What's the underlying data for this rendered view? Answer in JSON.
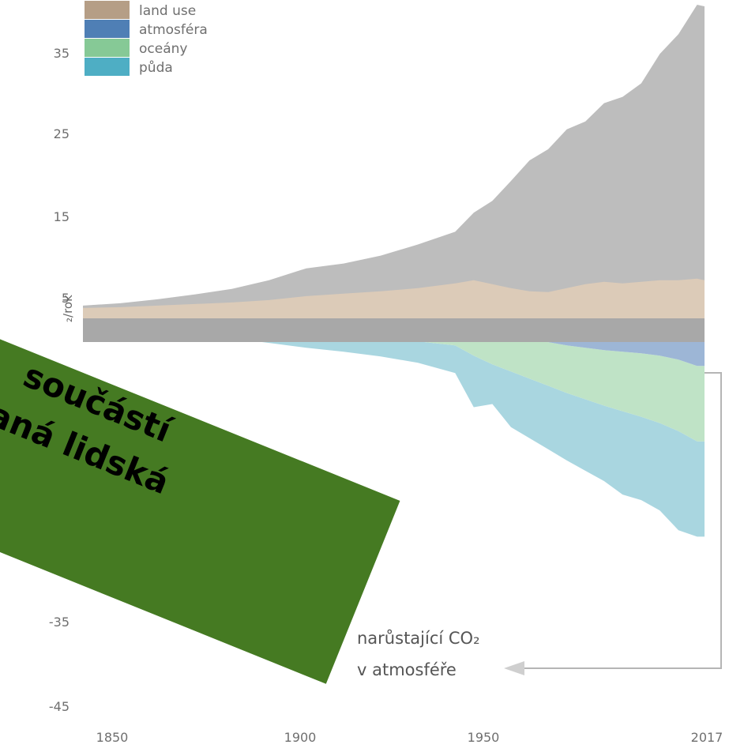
{
  "chart_data": {
    "type": "area",
    "title": "",
    "ylabel_visible": "₂/rok",
    "x_ticks": [
      "1850",
      "1900",
      "1950",
      "2017"
    ],
    "y_ticks": [
      "35",
      "25",
      "15",
      "5",
      "-35",
      "-45"
    ],
    "xlim": [
      1840,
      2020
    ],
    "ylim": [
      -45,
      40
    ],
    "legend": [
      {
        "label": "land use",
        "color": "#b59e86"
      },
      {
        "label": "atmosféra",
        "color": "#4f7fb5"
      },
      {
        "label": "oceány",
        "color": "#86c996"
      },
      {
        "label": "půda",
        "color": "#4eaec4"
      }
    ],
    "fossil_color": "#bdbdbd",
    "zero_band_color": "#a8a8a8",
    "years": [
      1850,
      1860,
      1870,
      1880,
      1890,
      1900,
      1910,
      1920,
      1930,
      1940,
      1950,
      1955,
      1960,
      1965,
      1970,
      1975,
      1980,
      1985,
      1990,
      1995,
      2000,
      2005,
      2010,
      2015,
      2017
    ],
    "series": [
      {
        "key": "land_use",
        "name": "land use",
        "values": [
          1.5,
          1.6,
          1.8,
          2.0,
          2.2,
          2.5,
          3.0,
          3.3,
          3.6,
          4.0,
          4.6,
          5.0,
          4.5,
          4.0,
          3.6,
          3.5,
          4.0,
          4.5,
          4.8,
          4.6,
          4.8,
          5.0,
          5.0,
          5.2,
          5.0
        ]
      },
      {
        "key": "fossil",
        "name": "",
        "values": [
          0.3,
          0.5,
          0.8,
          1.2,
          1.7,
          2.5,
          3.5,
          3.8,
          4.5,
          5.5,
          6.5,
          8.5,
          10.5,
          13.5,
          16.5,
          18.0,
          20.0,
          20.5,
          22.5,
          23.5,
          25.0,
          28.5,
          31.0,
          34.5,
          34.5
        ]
      },
      {
        "key": "atmosfera",
        "name": "atmosféra",
        "values": [
          0.0,
          0.0,
          0.0,
          0.0,
          0.0,
          0.0,
          0.0,
          0.0,
          0.0,
          0.0,
          0.0,
          -1.0,
          -1.6,
          -2.0,
          -2.4,
          -2.8,
          -3.2,
          -3.5,
          -3.8,
          -4.0,
          -4.2,
          -4.5,
          -5.0,
          -5.8,
          -5.8
        ]
      },
      {
        "key": "oceany",
        "name": "oceány",
        "values": [
          -0.5,
          -0.7,
          -0.8,
          -1.0,
          -1.2,
          -1.5,
          -1.8,
          -2.0,
          -2.3,
          -2.7,
          -3.2,
          -3.5,
          -4.0,
          -4.5,
          -5.0,
          -5.5,
          -6.0,
          -6.5,
          -7.0,
          -7.5,
          -8.0,
          -8.5,
          -9.0,
          -9.5,
          -9.5
        ]
      },
      {
        "key": "puda",
        "name": "půda",
        "values": [
          -0.3,
          -0.5,
          -0.7,
          -0.9,
          -1.1,
          -1.4,
          -1.7,
          -2.0,
          -2.3,
          -2.7,
          -3.5,
          -6.5,
          -5.0,
          -7.0,
          -7.5,
          -8.0,
          -8.5,
          -9.0,
          -9.5,
          -10.5,
          -10.5,
          -11.0,
          -12.5,
          -12.0,
          -12.0
        ]
      }
    ],
    "annotation": {
      "line1": "narůstající CO₂",
      "line2": "v atmosféře"
    }
  },
  "overlay_banner": {
    "line1": "součástí",
    "line2": "vaná lidská",
    "line3": "",
    "color": "#457a22"
  }
}
